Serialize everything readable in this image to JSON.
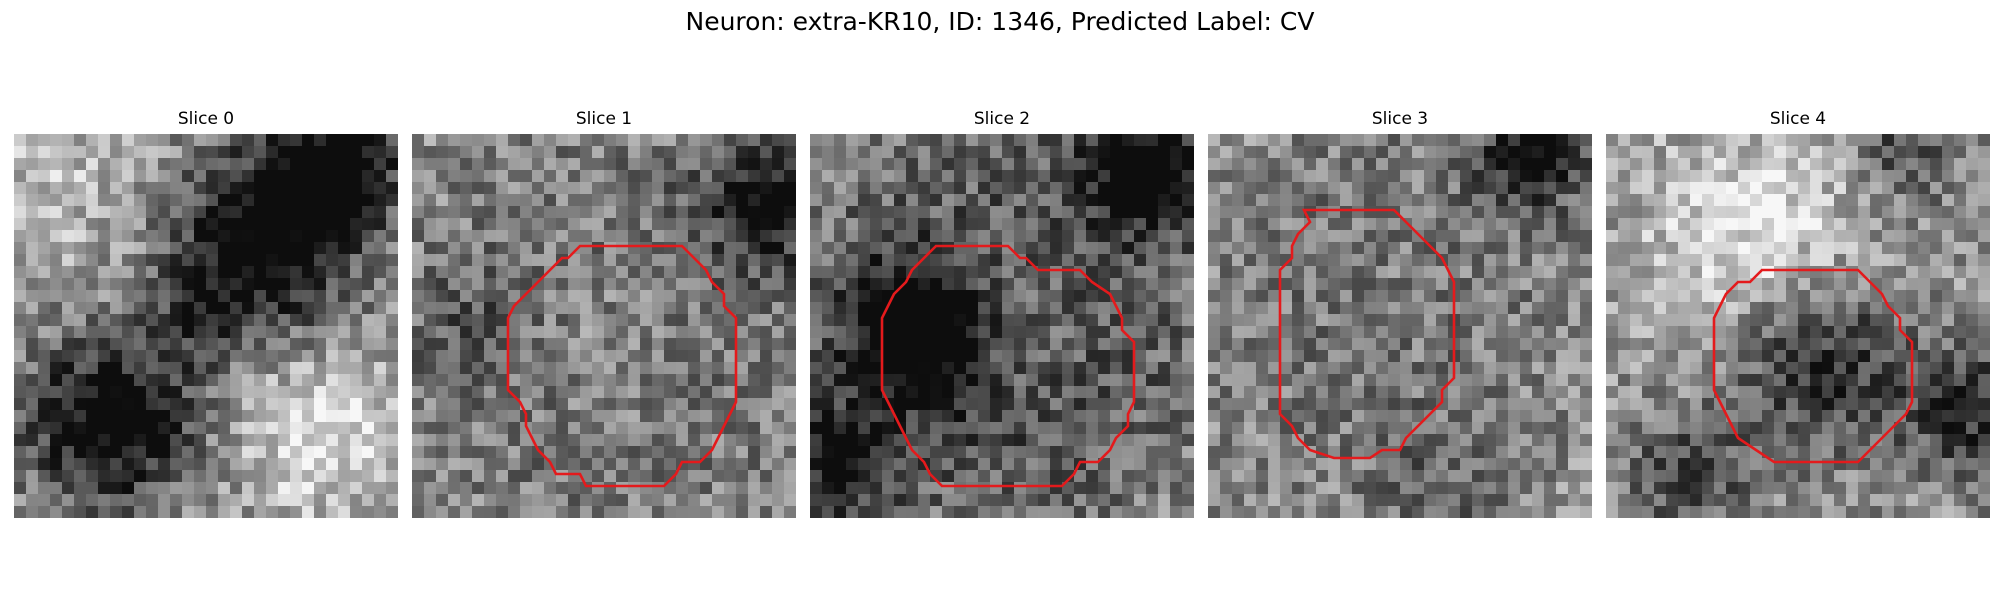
{
  "figure": {
    "title": "Neuron: extra-KR10, ID: 1346, Predicted Label: CV"
  },
  "contour_color": "#e41a1c",
  "slices": [
    {
      "title": "Slice 0",
      "has_contour": false
    },
    {
      "title": "Slice 1",
      "has_contour": true
    },
    {
      "title": "Slice 2",
      "has_contour": true
    },
    {
      "title": "Slice 3",
      "has_contour": true
    },
    {
      "title": "Slice 4",
      "has_contour": true
    }
  ]
}
